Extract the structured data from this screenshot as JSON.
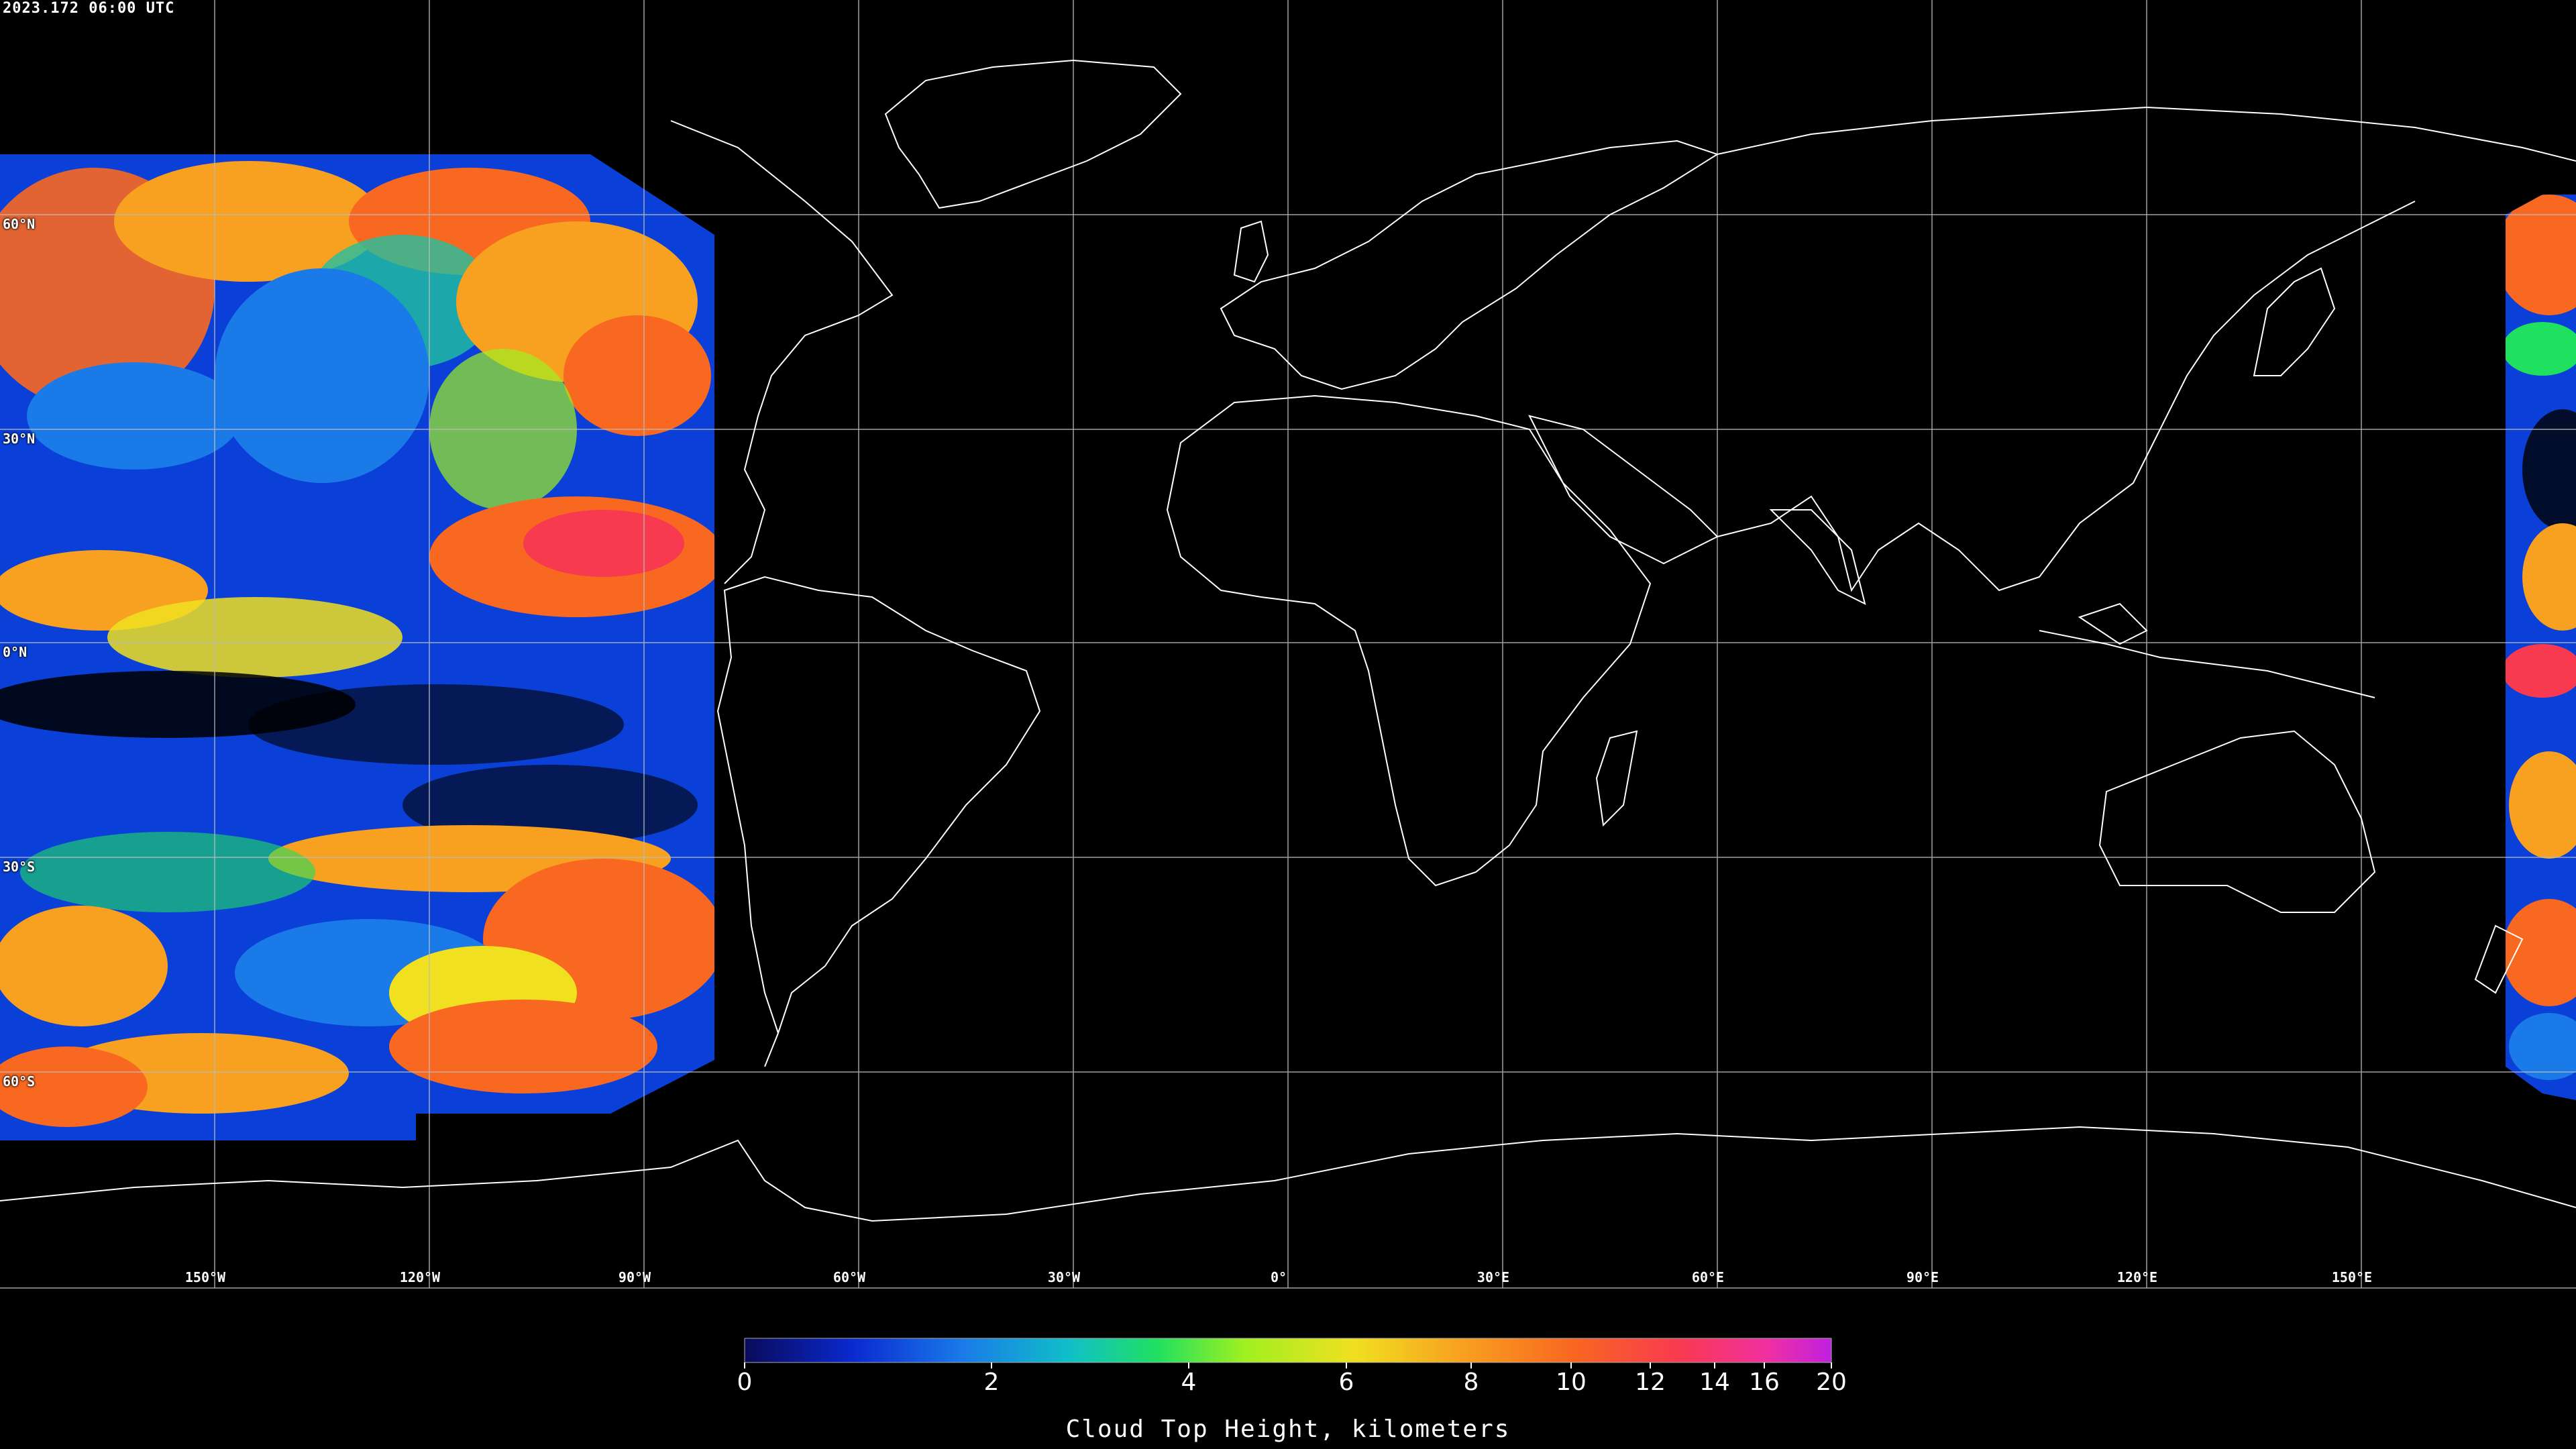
{
  "timestamp": "2023.172 06:00 UTC",
  "latitude_labels": [
    "60°N",
    "30°N",
    "0°N",
    "30°S",
    "60°S"
  ],
  "longitude_labels": [
    "150°W",
    "120°W",
    "90°W",
    "60°W",
    "30°W",
    "0°",
    "30°E",
    "60°E",
    "90°E",
    "120°E",
    "150°E"
  ],
  "colorbar": {
    "title": "Cloud Top Height, kilometers",
    "tick_labels": [
      "0",
      "2",
      "4",
      "6",
      "8",
      "10",
      "12",
      "14",
      "16",
      "20"
    ],
    "range": [
      0,
      20
    ],
    "colors": [
      "#0a0a5a",
      "#0a2ad0",
      "#1a7ae8",
      "#10c0c8",
      "#20e060",
      "#a0f020",
      "#f0e020",
      "#f8a020",
      "#f86820",
      "#f83a50",
      "#f030a0",
      "#c020e0"
    ]
  },
  "legend": {
    "clear_sky_color": "#000000",
    "coastline_color": "#ffffff",
    "grid_color": "#cccccc"
  }
}
